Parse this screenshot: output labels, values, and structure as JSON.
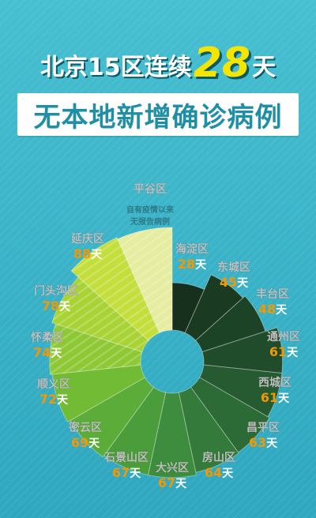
{
  "header": {
    "title_prefix": "北京15区连续",
    "title_number": "28",
    "title_suffix": "天",
    "subtitle": "无本地新增确诊病例"
  },
  "chart_data": {
    "type": "pie",
    "unit": "天",
    "categories": [
      "海淀区",
      "东城区",
      "丰台区",
      "通州区",
      "西城区",
      "昌平区",
      "房山区",
      "大兴区",
      "石景山区",
      "密云区",
      "顺义区",
      "怀柔区",
      "门头沟区",
      "延庆区",
      "平谷区"
    ],
    "values": [
      28,
      45,
      48,
      61,
      61,
      63,
      64,
      67,
      67,
      69,
      72,
      74,
      78,
      88,
      null
    ],
    "annotations": {
      "平谷区": "自有疫情以来\n无报告病例"
    }
  },
  "colors": {
    "title_text": "#ffffff",
    "number_highlight": "#f5e400",
    "banner_bg": "#ffffff",
    "banner_text": "#1f8fa6",
    "value_text": "#f39800",
    "slices": [
      "#17301e",
      "#1b3a22",
      "#1d4326",
      "#214c2b",
      "#265a30",
      "#2c6a36",
      "#347a3a",
      "#3e8c3d",
      "#4b9d3c",
      "#5cac39",
      "#72bb34",
      "#8ec834",
      "#a9d335",
      "#c4de3c",
      "#e6eca0"
    ]
  }
}
